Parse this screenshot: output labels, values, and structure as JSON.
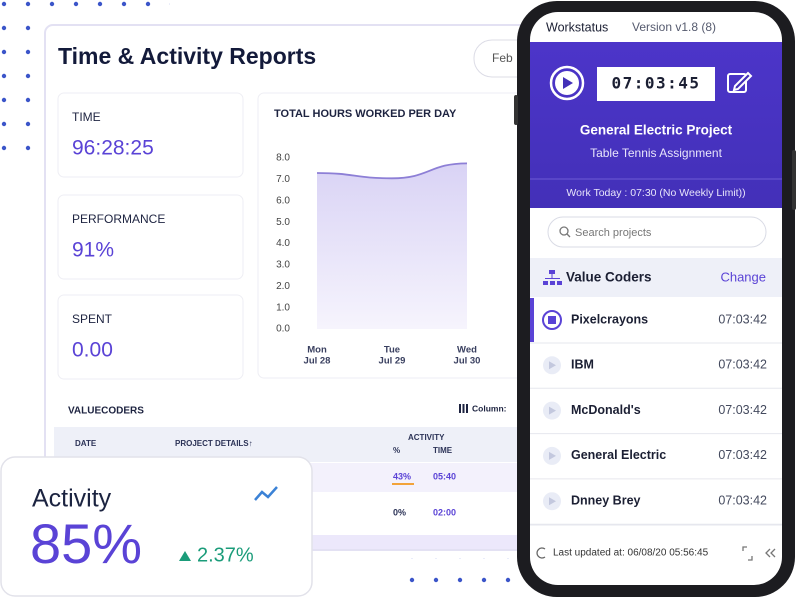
{
  "main_panel": {
    "title": "Time & Activity Reports",
    "date_button": "Feb",
    "stats": [
      {
        "label": "TIME",
        "value": "96:28:25"
      },
      {
        "label": "PERFORMANCE",
        "value": "91%"
      },
      {
        "label": "SPENT",
        "value": "0.00"
      }
    ]
  },
  "chart_data": {
    "type": "line",
    "title": "TOTAL HOURS WORKED PER DAY",
    "categories": [
      "Mon",
      "Tue",
      "Wed"
    ],
    "category_dates": [
      "Jul 28",
      "Jul 29",
      "Jul 30"
    ],
    "values": [
      7.3,
      7.05,
      7.75
    ],
    "color": "#8d7fd6",
    "ylim": [
      0,
      8
    ],
    "yticks": [
      {
        "value": 0,
        "label": "0.0"
      },
      {
        "value": 1,
        "label": "1.0"
      },
      {
        "value": 2,
        "label": "2.0"
      },
      {
        "value": 3,
        "label": "3.0"
      },
      {
        "value": 4,
        "label": "4.0"
      },
      {
        "value": 5,
        "label": "5.0"
      },
      {
        "value": 6,
        "label": "6.0"
      },
      {
        "value": 7,
        "label": "7.0"
      },
      {
        "value": 8,
        "label": "8.0"
      }
    ]
  },
  "table": {
    "title": "VALUECODERS",
    "column_button": "Column:",
    "columns": {
      "date": "DATE",
      "project": "PROJECT DETAILS↑",
      "activity": "ACTIVITY",
      "percent": "%",
      "time": "TIME"
    },
    "rows": [
      [
        "43%",
        "05:40"
      ],
      [
        "0%",
        "02:00"
      ]
    ]
  },
  "activity_card": {
    "label": "Activity",
    "value": "85%",
    "change": "2.37%"
  },
  "phone": {
    "app_name": "Workstatus",
    "version": "Version v1.8 (8)",
    "timer": "07:03:45",
    "project": "General Electric Project",
    "task": "Table Tennis Assignment",
    "work_today": "Work Today : 07:30 (No Weekly Limit))",
    "search_placeholder": "Search projects",
    "organization": "Value Coders",
    "change_button": "Change",
    "projects": [
      {
        "name": "Pixelcrayons",
        "time": "07:03:42"
      },
      {
        "name": "IBM",
        "time": "07:03:42"
      },
      {
        "name": "McDonald's",
        "time": "07:03:42"
      },
      {
        "name": "General Electric",
        "time": "07:03:42"
      },
      {
        "name": "Dnney Brey",
        "time": "07:03:42"
      }
    ],
    "last_updated": "Last updated at: 06/08/20  05:56:45"
  }
}
